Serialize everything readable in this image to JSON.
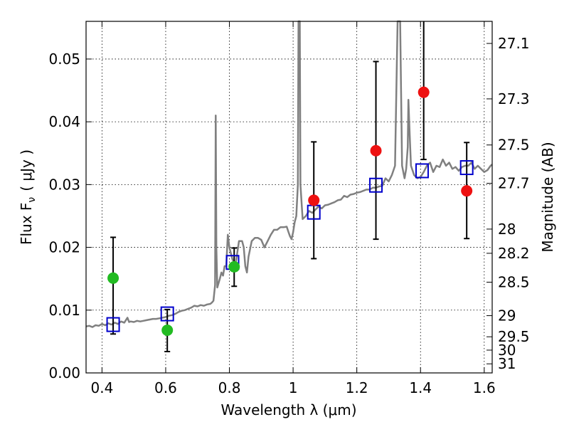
{
  "chart_data": {
    "type": "scatter",
    "title": "",
    "xlabel": "Wavelength  λ (μm)",
    "ylabel": "Flux  F",
    "ylabel_subscript": "ν",
    "ylabel_unit": "( μJy )",
    "ylabel_right": "Magnitude (AB)",
    "xlim": [
      0.35,
      1.625
    ],
    "ylim": [
      0.0,
      0.056
    ],
    "grid": true,
    "x_ticks": [
      0.4,
      0.6,
      0.8,
      1.0,
      1.2,
      1.4,
      1.6
    ],
    "x_tick_labels": [
      "0.4",
      "0.6",
      "0.8",
      "1",
      "1.2",
      "1.4",
      "1.6"
    ],
    "y_ticks": [
      0.0,
      0.01,
      0.02,
      0.03,
      0.04,
      0.05
    ],
    "y_tick_labels": [
      "0.00",
      "0.01",
      "0.02",
      "0.03",
      "0.04",
      "0.05"
    ],
    "right_ticks": [
      {
        "value": 27.1,
        "label": "27.1"
      },
      {
        "value": 27.3,
        "label": "27.3"
      },
      {
        "value": 27.5,
        "label": "27.5"
      },
      {
        "value": 27.7,
        "label": "27.7"
      },
      {
        "value": 28.0,
        "label": "28"
      },
      {
        "value": 28.2,
        "label": "28.2"
      },
      {
        "value": 28.5,
        "label": "28.5"
      },
      {
        "value": 29.0,
        "label": "29"
      },
      {
        "value": 29.5,
        "label": "29.5"
      },
      {
        "value": 30.0,
        "label": "30"
      },
      {
        "value": 31.0,
        "label": "31"
      }
    ],
    "series": [
      {
        "kind": "spectrum",
        "color": "#808080",
        "points": [
          [
            0.35,
            0.0074
          ],
          [
            0.36,
            0.0075
          ],
          [
            0.37,
            0.0073
          ],
          [
            0.38,
            0.0076
          ],
          [
            0.39,
            0.0075
          ],
          [
            0.4,
            0.0078
          ],
          [
            0.41,
            0.0076
          ],
          [
            0.42,
            0.0079
          ],
          [
            0.43,
            0.0077
          ],
          [
            0.44,
            0.008
          ],
          [
            0.45,
            0.0078
          ],
          [
            0.46,
            0.0082
          ],
          [
            0.47,
            0.008
          ],
          [
            0.48,
            0.0088
          ],
          [
            0.485,
            0.0081
          ],
          [
            0.49,
            0.0082
          ],
          [
            0.5,
            0.0081
          ],
          [
            0.51,
            0.0083
          ],
          [
            0.52,
            0.0082
          ],
          [
            0.53,
            0.0083
          ],
          [
            0.54,
            0.0084
          ],
          [
            0.55,
            0.0085
          ],
          [
            0.56,
            0.0086
          ],
          [
            0.57,
            0.0086
          ],
          [
            0.58,
            0.0087
          ],
          [
            0.59,
            0.0088
          ],
          [
            0.6,
            0.0089
          ],
          [
            0.61,
            0.0091
          ],
          [
            0.62,
            0.0092
          ],
          [
            0.63,
            0.0094
          ],
          [
            0.64,
            0.0097
          ],
          [
            0.65,
            0.0099
          ],
          [
            0.66,
            0.01
          ],
          [
            0.67,
            0.0102
          ],
          [
            0.68,
            0.0104
          ],
          [
            0.69,
            0.0107
          ],
          [
            0.7,
            0.0106
          ],
          [
            0.71,
            0.0108
          ],
          [
            0.72,
            0.0107
          ],
          [
            0.73,
            0.0109
          ],
          [
            0.74,
            0.011
          ],
          [
            0.745,
            0.0112
          ],
          [
            0.75,
            0.0115
          ],
          [
            0.755,
            0.014
          ],
          [
            0.757,
            0.041
          ],
          [
            0.759,
            0.02
          ],
          [
            0.762,
            0.0136
          ],
          [
            0.77,
            0.015
          ],
          [
            0.775,
            0.016
          ],
          [
            0.78,
            0.0155
          ],
          [
            0.785,
            0.017
          ],
          [
            0.79,
            0.017
          ],
          [
            0.795,
            0.022
          ],
          [
            0.8,
            0.02
          ],
          [
            0.81,
            0.018
          ],
          [
            0.82,
            0.0175
          ],
          [
            0.83,
            0.021
          ],
          [
            0.84,
            0.021
          ],
          [
            0.845,
            0.02
          ],
          [
            0.85,
            0.017
          ],
          [
            0.855,
            0.016
          ],
          [
            0.86,
            0.0185
          ],
          [
            0.87,
            0.021
          ],
          [
            0.88,
            0.0215
          ],
          [
            0.89,
            0.0215
          ],
          [
            0.9,
            0.0212
          ],
          [
            0.91,
            0.02
          ],
          [
            0.92,
            0.021
          ],
          [
            0.93,
            0.022
          ],
          [
            0.94,
            0.0228
          ],
          [
            0.95,
            0.0228
          ],
          [
            0.96,
            0.0232
          ],
          [
            0.97,
            0.0232
          ],
          [
            0.98,
            0.0233
          ],
          [
            0.985,
            0.0225
          ],
          [
            0.99,
            0.0218
          ],
          [
            0.995,
            0.0213
          ],
          [
            1.0,
            0.0224
          ],
          [
            1.005,
            0.024
          ],
          [
            1.01,
            0.025
          ],
          [
            1.015,
            0.03
          ],
          [
            1.017,
            0.056
          ],
          [
            1.021,
            0.056
          ],
          [
            1.023,
            0.03
          ],
          [
            1.03,
            0.0245
          ],
          [
            1.04,
            0.025
          ],
          [
            1.05,
            0.0258
          ],
          [
            1.06,
            0.0255
          ],
          [
            1.07,
            0.026
          ],
          [
            1.08,
            0.0265
          ],
          [
            1.09,
            0.0262
          ],
          [
            1.1,
            0.0267
          ],
          [
            1.11,
            0.0268
          ],
          [
            1.12,
            0.027
          ],
          [
            1.13,
            0.0272
          ],
          [
            1.14,
            0.0275
          ],
          [
            1.15,
            0.0276
          ],
          [
            1.16,
            0.0282
          ],
          [
            1.17,
            0.028
          ],
          [
            1.18,
            0.0284
          ],
          [
            1.19,
            0.0285
          ],
          [
            1.2,
            0.0287
          ],
          [
            1.21,
            0.0288
          ],
          [
            1.22,
            0.029
          ],
          [
            1.23,
            0.0292
          ],
          [
            1.24,
            0.0292
          ],
          [
            1.25,
            0.0295
          ],
          [
            1.26,
            0.0295
          ],
          [
            1.27,
            0.0297
          ],
          [
            1.28,
            0.0298
          ],
          [
            1.29,
            0.031
          ],
          [
            1.3,
            0.0305
          ],
          [
            1.31,
            0.0315
          ],
          [
            1.32,
            0.033
          ],
          [
            1.328,
            0.056
          ],
          [
            1.336,
            0.056
          ],
          [
            1.342,
            0.033
          ],
          [
            1.35,
            0.031
          ],
          [
            1.355,
            0.0325
          ],
          [
            1.36,
            0.036
          ],
          [
            1.362,
            0.0435
          ],
          [
            1.366,
            0.038
          ],
          [
            1.37,
            0.033
          ],
          [
            1.38,
            0.0315
          ],
          [
            1.39,
            0.031
          ],
          [
            1.4,
            0.0312
          ],
          [
            1.41,
            0.032
          ],
          [
            1.42,
            0.033
          ],
          [
            1.43,
            0.0335
          ],
          [
            1.44,
            0.032
          ],
          [
            1.45,
            0.033
          ],
          [
            1.46,
            0.0328
          ],
          [
            1.47,
            0.034
          ],
          [
            1.48,
            0.033
          ],
          [
            1.49,
            0.0335
          ],
          [
            1.5,
            0.0325
          ],
          [
            1.51,
            0.0328
          ],
          [
            1.52,
            0.0322
          ],
          [
            1.53,
            0.0328
          ],
          [
            1.54,
            0.033
          ],
          [
            1.55,
            0.033
          ],
          [
            1.56,
            0.0335
          ],
          [
            1.57,
            0.0325
          ],
          [
            1.58,
            0.033
          ],
          [
            1.59,
            0.0325
          ],
          [
            1.6,
            0.032
          ],
          [
            1.61,
            0.0323
          ],
          [
            1.62,
            0.033
          ],
          [
            1.625,
            0.0332
          ]
        ]
      },
      {
        "kind": "model-boxes",
        "color": "#0000cc",
        "points": [
          [
            0.435,
            0.0077
          ],
          [
            0.605,
            0.0094
          ],
          [
            0.81,
            0.0176
          ],
          [
            1.065,
            0.0256
          ],
          [
            1.26,
            0.0299
          ],
          [
            1.405,
            0.0322
          ],
          [
            1.545,
            0.0327
          ]
        ]
      },
      {
        "kind": "green-points",
        "color": "#22bb22",
        "points": [
          [
            0.435,
            0.0151
          ],
          [
            0.605,
            0.0068
          ],
          [
            0.815,
            0.0169
          ]
        ],
        "errors": [
          [
            0.435,
            0.0062,
            0.0216
          ],
          [
            0.605,
            0.0034,
            0.0101
          ],
          [
            0.815,
            0.0138,
            0.0199
          ]
        ]
      },
      {
        "kind": "red-points",
        "color": "#ee1111",
        "points": [
          [
            1.065,
            0.0275
          ],
          [
            1.26,
            0.0354
          ],
          [
            1.41,
            0.0447
          ],
          [
            1.545,
            0.029
          ]
        ],
        "errors": [
          [
            1.065,
            0.0182,
            0.0368
          ],
          [
            1.26,
            0.0213,
            0.0496
          ],
          [
            1.41,
            0.034,
            0.056
          ],
          [
            1.545,
            0.0214,
            0.0367
          ]
        ]
      }
    ]
  }
}
